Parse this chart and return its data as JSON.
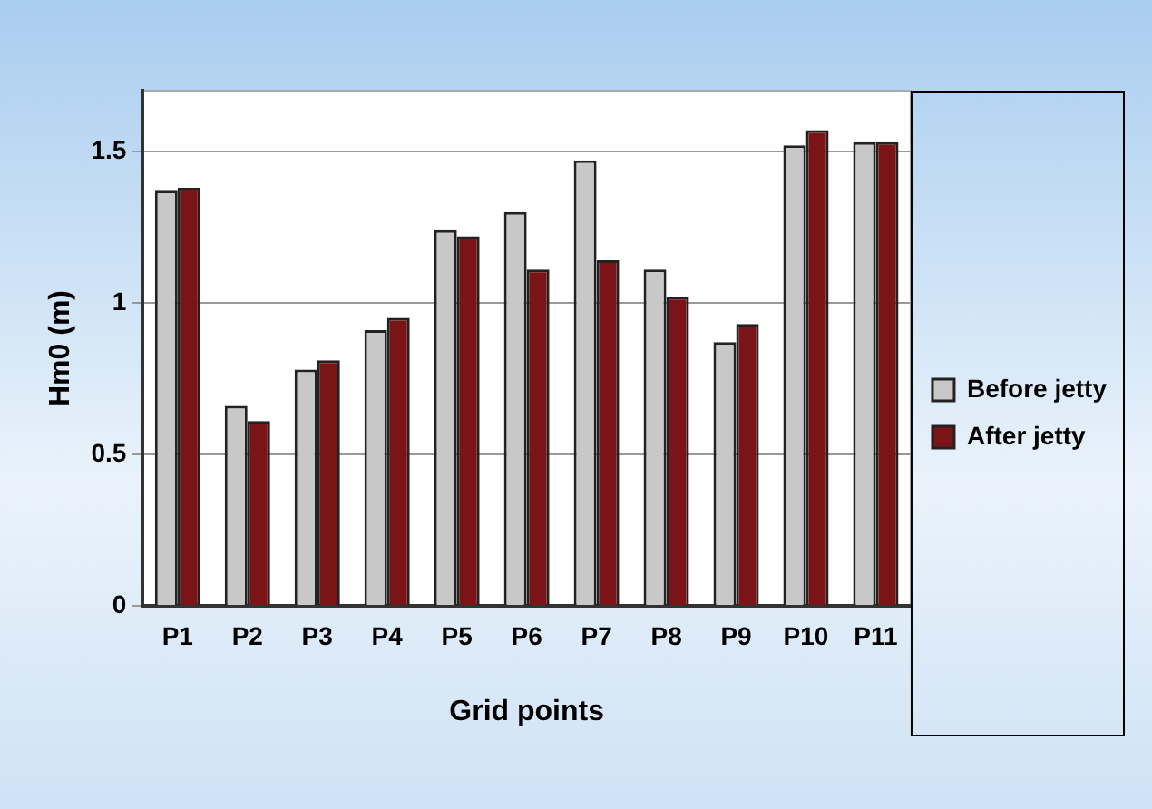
{
  "chart_data": {
    "type": "bar",
    "xlabel": "Grid points",
    "ylabel": "Hm0 (m)",
    "categories": [
      "P1",
      "P2",
      "P3",
      "P4",
      "P5",
      "P6",
      "P7",
      "P8",
      "P9",
      "P10",
      "P11"
    ],
    "series": [
      {
        "name": "Before jetty",
        "color": "#c8c8c8",
        "values": [
          1.37,
          0.66,
          0.78,
          0.91,
          1.24,
          1.3,
          1.47,
          1.11,
          0.87,
          1.52,
          1.53
        ]
      },
      {
        "name": "After jetty",
        "color": "#7b1416",
        "values": [
          1.38,
          0.61,
          0.81,
          0.95,
          1.22,
          1.11,
          1.14,
          1.02,
          0.93,
          1.57,
          1.53
        ]
      }
    ],
    "ylim": [
      0,
      1.7
    ],
    "yticks": [
      0,
      0.5,
      1,
      1.5
    ],
    "grid": "y",
    "legend": "right"
  }
}
